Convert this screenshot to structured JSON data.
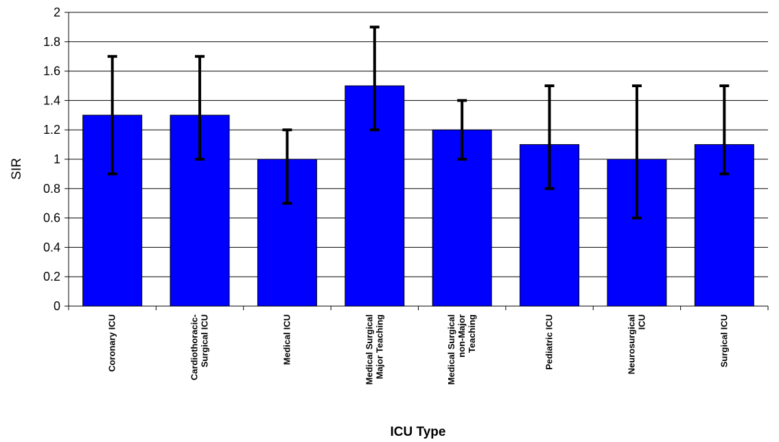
{
  "chart_data": {
    "type": "bar",
    "categories": [
      [
        "Coronary ICU"
      ],
      [
        "Cardiothoracic-",
        "Surgical ICU"
      ],
      [
        "Medical ICU"
      ],
      [
        "Medical Surgical",
        "Major Teaching"
      ],
      [
        "Medical Surgical",
        "non-Major",
        "Teaching"
      ],
      [
        "Pediatric ICU"
      ],
      [
        "Neurosurgical",
        "ICU"
      ],
      [
        "Surgical ICU"
      ]
    ],
    "values": [
      1.3,
      1.3,
      1.0,
      1.5,
      1.2,
      1.1,
      1.0,
      1.1
    ],
    "error_low": [
      0.9,
      1.0,
      0.7,
      1.2,
      1.0,
      0.8,
      0.6,
      0.9
    ],
    "error_high": [
      1.7,
      1.7,
      1.2,
      1.9,
      1.4,
      1.5,
      1.5,
      1.5
    ],
    "xlabel": "ICU Type",
    "ylabel": "SIR",
    "ylim": [
      0,
      2
    ],
    "yticks": [
      "0",
      "0.2",
      "0.4",
      "0.6",
      "0.8",
      "1",
      "1.2",
      "1.4",
      "1.6",
      "1.8",
      "2"
    ],
    "grid": true,
    "bar_color": "#0000ff",
    "error_bar_color": "#000000"
  }
}
